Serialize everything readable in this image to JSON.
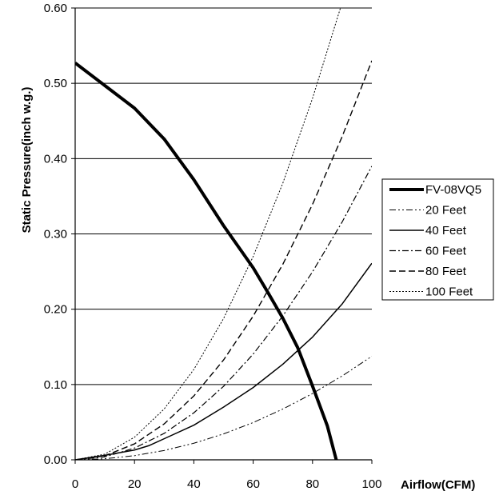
{
  "chart_data": {
    "type": "line",
    "xlabel": "Airflow(CFM)",
    "ylabel": "Static Pressure(inch w.g.)",
    "xlim": [
      0,
      100
    ],
    "ylim": [
      0,
      0.6
    ],
    "x_ticks": [
      "0",
      "20",
      "40",
      "60",
      "80",
      "100"
    ],
    "y_ticks": [
      "0.00",
      "0.10",
      "0.20",
      "0.30",
      "0.40",
      "0.50",
      "0.60"
    ],
    "grid": "horizontal",
    "legend_position": "right",
    "series": [
      {
        "name": "FV-08VQ5",
        "style": "thick-solid",
        "x": [
          0,
          10,
          20,
          30,
          40,
          50,
          60,
          65,
          70,
          75,
          80,
          85,
          88
        ],
        "y": [
          0.527,
          0.497,
          0.467,
          0.426,
          0.372,
          0.311,
          0.255,
          0.222,
          0.188,
          0.149,
          0.098,
          0.045,
          0.0
        ]
      },
      {
        "name": "20 Feet",
        "style": "dash-dot-dot",
        "x": [
          0,
          10,
          20,
          30,
          40,
          50,
          60,
          70,
          80,
          90,
          100
        ],
        "y": [
          0,
          0.0014,
          0.0055,
          0.0124,
          0.022,
          0.0344,
          0.0495,
          0.0674,
          0.088,
          0.1114,
          0.1375
        ]
      },
      {
        "name": "40 Feet",
        "style": "solid",
        "x": [
          0,
          10,
          20,
          25,
          30,
          40,
          50,
          60,
          70,
          80,
          90,
          100
        ],
        "y": [
          0,
          0.006,
          0.013,
          0.019,
          0.028,
          0.046,
          0.07,
          0.096,
          0.127,
          0.163,
          0.207,
          0.261
        ]
      },
      {
        "name": "60 Feet",
        "style": "dash-dot",
        "x": [
          0,
          10,
          20,
          30,
          40,
          50,
          60,
          70,
          80,
          90,
          100
        ],
        "y": [
          0,
          0.0039,
          0.0156,
          0.0351,
          0.0624,
          0.0975,
          0.1404,
          0.1911,
          0.2496,
          0.3159,
          0.39
        ]
      },
      {
        "name": "80 Feet",
        "style": "dashed",
        "x": [
          0,
          10,
          20,
          30,
          40,
          50,
          60,
          70,
          80,
          90,
          100
        ],
        "y": [
          0,
          0.0053,
          0.0212,
          0.0477,
          0.0848,
          0.1325,
          0.1908,
          0.2597,
          0.3392,
          0.4293,
          0.53
        ]
      },
      {
        "name": "100 Feet",
        "style": "dotted",
        "x": [
          0,
          10,
          20,
          30,
          40,
          50,
          60,
          70,
          80,
          90
        ],
        "y": [
          0,
          0.0075,
          0.03,
          0.0675,
          0.12,
          0.1875,
          0.27,
          0.3675,
          0.48,
          0.6075
        ]
      }
    ]
  }
}
